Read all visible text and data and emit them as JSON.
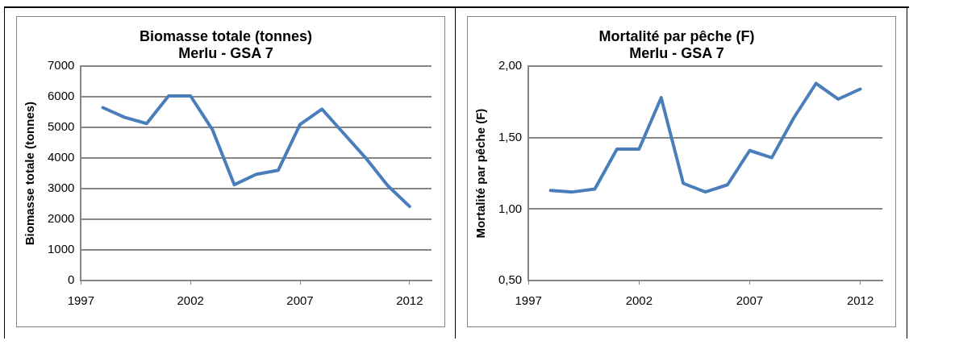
{
  "chart_data": [
    {
      "type": "line",
      "title": "Biomasse totale (tonnes)",
      "subtitle": "Merlu - GSA 7",
      "ylabel": "Biomasse totale (tonnes)",
      "x": [
        1998,
        1999,
        2000,
        2001,
        2002,
        2003,
        2004,
        2005,
        2006,
        2007,
        2008,
        2009,
        2010,
        2011,
        2012
      ],
      "series": [
        {
          "color": "#4a7ebb",
          "values": [
            5650,
            5330,
            5130,
            6030,
            6030,
            4930,
            3130,
            3470,
            3600,
            5100,
            5600,
            4800,
            4000,
            3100,
            2420
          ]
        }
      ],
      "xlim": [
        1997,
        2013
      ],
      "xticks": [
        1997,
        2002,
        2007,
        2012
      ],
      "ylim": [
        0,
        7000
      ],
      "yticks": [
        0,
        1000,
        2000,
        3000,
        4000,
        5000,
        6000,
        7000
      ],
      "grid": "y",
      "legend": false,
      "marker": "none",
      "line_style": "solid"
    },
    {
      "type": "line",
      "title": "Mortalité par pêche (F)",
      "subtitle": "Merlu - GSA 7",
      "ylabel": "Mortalité par pêche (F)",
      "x": [
        1998,
        1999,
        2000,
        2001,
        2002,
        2003,
        2004,
        2005,
        2006,
        2007,
        2008,
        2009,
        2010,
        2011,
        2012
      ],
      "series": [
        {
          "color": "#4a7ebb",
          "values": [
            1.13,
            1.12,
            1.14,
            1.42,
            1.42,
            1.78,
            1.18,
            1.12,
            1.17,
            1.41,
            1.36,
            1.64,
            1.88,
            1.77,
            1.84
          ]
        }
      ],
      "xlim": [
        1997,
        2013
      ],
      "xticks": [
        1997,
        2002,
        2007,
        2012
      ],
      "ylim": [
        0.5,
        2
      ],
      "yticks": [
        {
          "value": 0.5,
          "label": "0,50"
        },
        {
          "value": 1,
          "label": "1,00"
        },
        {
          "value": 1.5,
          "label": "1,50"
        },
        {
          "value": 2,
          "label": "2,00"
        }
      ],
      "grid": "y",
      "legend": false,
      "marker": "none",
      "line_style": "solid"
    }
  ]
}
